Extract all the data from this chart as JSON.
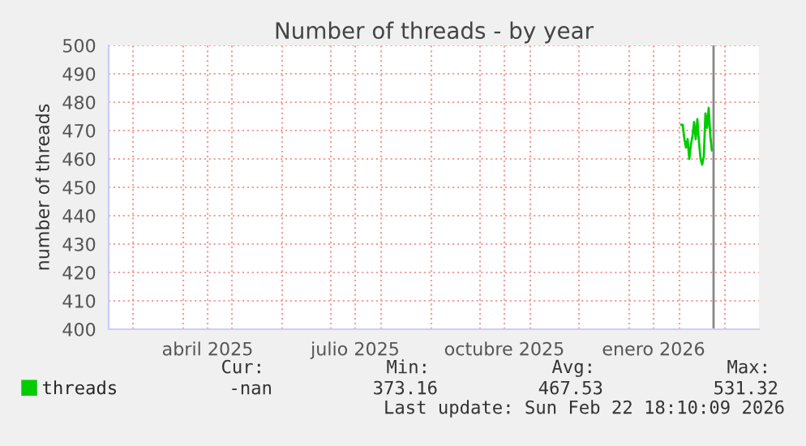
{
  "chart_data": {
    "type": "line",
    "title": "Number of threads - by year",
    "ylabel": "number of threads",
    "series": [
      {
        "name": "threads",
        "color": "#00cc00",
        "x": [
          "2026-02-02",
          "2026-02-03",
          "2026-02-04",
          "2026-02-05",
          "2026-02-06",
          "2026-02-07",
          "2026-02-08",
          "2026-02-09",
          "2026-02-10",
          "2026-02-11",
          "2026-02-12",
          "2026-02-13",
          "2026-02-14",
          "2026-02-15",
          "2026-02-16",
          "2026-02-17",
          "2026-02-18",
          "2026-02-19",
          "2026-02-20",
          "2026-02-21"
        ],
        "values": [
          472,
          472,
          467,
          464,
          467,
          460,
          465,
          468,
          473,
          467,
          474,
          466,
          460,
          458,
          461,
          476,
          471,
          478,
          468,
          463
        ]
      }
    ],
    "xlim": [
      "2025-02-14",
      "2026-03-22"
    ],
    "xticks": [
      {
        "value": "2025-03-01",
        "label": null
      },
      {
        "value": "2025-04-01",
        "label": null
      },
      {
        "value": "2025-04-16",
        "label": "abril 2025"
      },
      {
        "value": "2025-05-01",
        "label": null
      },
      {
        "value": "2025-06-01",
        "label": null
      },
      {
        "value": "2025-07-01",
        "label": null
      },
      {
        "value": "2025-07-16",
        "label": "julio 2025"
      },
      {
        "value": "2025-08-01",
        "label": null
      },
      {
        "value": "2025-09-01",
        "label": null
      },
      {
        "value": "2025-10-01",
        "label": null
      },
      {
        "value": "2025-10-16",
        "label": "octubre 2025"
      },
      {
        "value": "2025-11-01",
        "label": null
      },
      {
        "value": "2025-12-01",
        "label": null
      },
      {
        "value": "2026-01-01",
        "label": null
      },
      {
        "value": "2026-01-16",
        "label": "enero 2026"
      },
      {
        "value": "2026-02-01",
        "label": null
      },
      {
        "value": "2026-03-01",
        "label": null
      }
    ],
    "ylim": [
      400,
      500
    ],
    "yticks": [
      400,
      410,
      420,
      430,
      440,
      450,
      460,
      470,
      480,
      490,
      500
    ],
    "ref_lines": [
      {
        "axis": "x",
        "value": "2026-02-22",
        "color": "#888888"
      }
    ],
    "grid": true,
    "legend": "bottom left",
    "annotations": [
      "Cur:",
      "Min:",
      "Avg:",
      "Max:",
      "-nan",
      "373.16",
      "467.53",
      "531.32",
      "Last update: Sun Feb 22 18:10:09 2026"
    ]
  }
}
